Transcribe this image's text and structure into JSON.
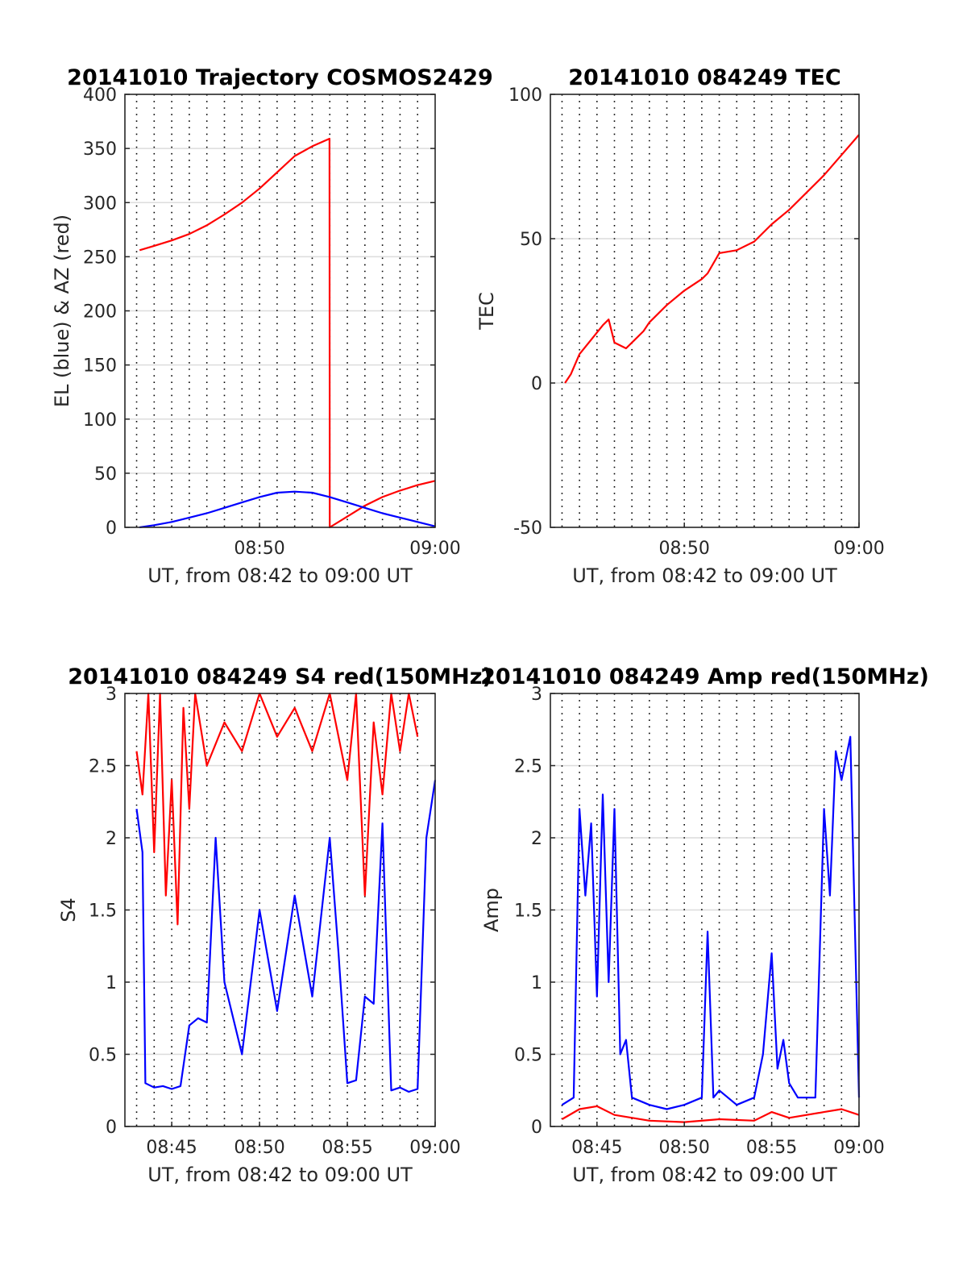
{
  "chart_data": [
    {
      "type": "line",
      "title": "20141010 Trajectory COSMOS2429",
      "xlabel": "UT, from 08:42 to 09:00 UT",
      "ylabel": "EL (blue) & AZ (red)",
      "xlim": [
        "08:42:20",
        "09:00"
      ],
      "ylim": [
        0,
        400
      ],
      "yticks": [
        0,
        50,
        100,
        150,
        200,
        250,
        300,
        350,
        400
      ],
      "xticks": [
        "08:50",
        "09:00"
      ],
      "grid": true,
      "series": [
        {
          "color": "#ff0000",
          "x": [
            "08:43:10",
            "08:44:00",
            "08:45:00",
            "08:46:00",
            "08:47:00",
            "08:48:00",
            "08:49:00",
            "08:50:00",
            "08:51:00",
            "08:52:00",
            "08:53:00",
            "08:53:59",
            "08:54:00",
            "08:55:00",
            "08:56:00",
            "08:57:00",
            "08:58:00",
            "08:59:00",
            "09:00:00"
          ],
          "values": [
            256,
            260,
            265,
            271,
            279,
            289,
            300,
            313,
            328,
            343,
            352,
            359,
            0,
            10,
            20,
            28,
            34,
            39,
            43
          ]
        },
        {
          "color": "#0000ff",
          "x": [
            "08:43:10",
            "08:44:00",
            "08:45:00",
            "08:46:00",
            "08:47:00",
            "08:48:00",
            "08:49:00",
            "08:50:00",
            "08:51:00",
            "08:52:00",
            "08:53:00",
            "08:54:00",
            "08:55:00",
            "08:56:00",
            "08:57:00",
            "08:58:00",
            "08:59:00",
            "09:00:00"
          ],
          "values": [
            0,
            2,
            5,
            9,
            13,
            18,
            23,
            28,
            32,
            33,
            32,
            28,
            23,
            18,
            13,
            9,
            5,
            1
          ]
        }
      ]
    },
    {
      "type": "line",
      "title": "20141010 084249 TEC",
      "xlabel": "UT, from 08:42 to 09:00 UT",
      "ylabel": "TEC",
      "xlim": [
        "08:42:20",
        "09:00"
      ],
      "ylim": [
        -50,
        100
      ],
      "yticks": [
        -50,
        0,
        50,
        100
      ],
      "xticks": [
        "08:50",
        "09:00"
      ],
      "grid": true,
      "series": [
        {
          "color": "#ff0000",
          "x": [
            "08:43:10",
            "08:43:30",
            "08:44:00",
            "08:44:40",
            "08:45:20",
            "08:45:40",
            "08:46:00",
            "08:46:40",
            "08:47:10",
            "08:47:40",
            "08:48:00",
            "08:49:00",
            "08:50:00",
            "08:51:00",
            "08:51:20",
            "08:52:00",
            "08:53:00",
            "08:54:00",
            "08:55:00",
            "08:56:00",
            "08:57:00",
            "08:58:00",
            "08:59:00",
            "09:00:00"
          ],
          "values": [
            0,
            3,
            10,
            15,
            20,
            22,
            14,
            12,
            15,
            18,
            21,
            27,
            32,
            36,
            38,
            45,
            46,
            49,
            55,
            60,
            66,
            72,
            79,
            86
          ]
        }
      ]
    },
    {
      "type": "line",
      "title": "20141010 084249 S4 red(150MHz)",
      "xlabel": "UT, from 08:42 to 09:00 UT",
      "ylabel": "S4",
      "xlim": [
        "08:42:20",
        "09:00"
      ],
      "ylim": [
        0,
        3
      ],
      "yticks": [
        0,
        0.5,
        1,
        1.5,
        2,
        2.5,
        3
      ],
      "xticks": [
        "08:45",
        "08:50",
        "08:55",
        "09:00"
      ],
      "grid": true,
      "series": [
        {
          "color": "#ff0000",
          "x": [
            "08:43:00",
            "08:43:20",
            "08:43:40",
            "08:44:00",
            "08:44:20",
            "08:44:40",
            "08:45:00",
            "08:45:20",
            "08:45:40",
            "08:46:00",
            "08:46:20",
            "08:47:00",
            "08:48:00",
            "08:49:00",
            "08:50:00",
            "08:51:00",
            "08:52:00",
            "08:53:00",
            "08:54:00",
            "08:55:00",
            "08:55:30",
            "08:56:00",
            "08:56:30",
            "08:57:00",
            "08:57:30",
            "08:58:00",
            "08:58:30",
            "08:59:00"
          ],
          "values": [
            2.6,
            2.3,
            3.0,
            1.9,
            3.0,
            1.6,
            2.4,
            1.4,
            2.9,
            2.2,
            3.0,
            2.5,
            2.8,
            2.6,
            3.0,
            2.7,
            2.9,
            2.6,
            3.0,
            2.4,
            3.0,
            1.6,
            2.8,
            2.3,
            3.0,
            2.6,
            3.0,
            2.7
          ]
        },
        {
          "color": "#0000ff",
          "x": [
            "08:43:00",
            "08:43:20",
            "08:43:30",
            "08:44:00",
            "08:44:30",
            "08:45:00",
            "08:45:30",
            "08:46:00",
            "08:46:30",
            "08:47:00",
            "08:47:30",
            "08:48:00",
            "08:49:00",
            "08:50:00",
            "08:51:00",
            "08:52:00",
            "08:53:00",
            "08:54:00",
            "08:54:30",
            "08:55:00",
            "08:55:30",
            "08:56:00",
            "08:56:30",
            "08:57:00",
            "08:57:30",
            "08:58:00",
            "08:58:30",
            "08:59:00",
            "08:59:30",
            "09:00:00"
          ],
          "values": [
            2.2,
            1.9,
            0.3,
            0.27,
            0.28,
            0.26,
            0.28,
            0.7,
            0.75,
            0.72,
            2.0,
            1.0,
            0.5,
            1.5,
            0.8,
            1.6,
            0.9,
            2.0,
            1.2,
            0.3,
            0.32,
            0.9,
            0.85,
            2.1,
            0.25,
            0.27,
            0.24,
            0.26,
            2.0,
            2.4
          ]
        }
      ]
    },
    {
      "type": "line",
      "title": "20141010 084249 Amp red(150MHz)",
      "xlabel": "UT, from 08:42 to 09:00 UT",
      "ylabel": "Amp",
      "xlim": [
        "08:42:20",
        "09:00"
      ],
      "ylim": [
        0,
        3
      ],
      "yticks": [
        0,
        0.5,
        1,
        1.5,
        2,
        2.5,
        3
      ],
      "xticks": [
        "08:45",
        "08:50",
        "08:55",
        "09:00"
      ],
      "grid": true,
      "series": [
        {
          "color": "#ff0000",
          "x": [
            "08:43:00",
            "08:44:00",
            "08:45:00",
            "08:46:00",
            "08:48:00",
            "08:50:00",
            "08:52:00",
            "08:54:00",
            "08:55:00",
            "08:56:00",
            "08:58:00",
            "08:59:00",
            "09:00:00"
          ],
          "values": [
            0.05,
            0.12,
            0.14,
            0.08,
            0.04,
            0.03,
            0.05,
            0.04,
            0.1,
            0.06,
            0.1,
            0.12,
            0.08
          ]
        },
        {
          "color": "#0000ff",
          "x": [
            "08:43:00",
            "08:43:40",
            "08:44:00",
            "08:44:20",
            "08:44:40",
            "08:45:00",
            "08:45:20",
            "08:45:40",
            "08:46:00",
            "08:46:20",
            "08:46:40",
            "08:47:00",
            "08:48:00",
            "08:49:00",
            "08:50:00",
            "08:51:00",
            "08:51:20",
            "08:51:40",
            "08:52:00",
            "08:53:00",
            "08:54:00",
            "08:54:30",
            "08:55:00",
            "08:55:20",
            "08:55:40",
            "08:56:00",
            "08:56:30",
            "08:57:00",
            "08:57:30",
            "08:58:00",
            "08:58:20",
            "08:58:40",
            "08:59:00",
            "08:59:30",
            "09:00:00"
          ],
          "values": [
            0.15,
            0.2,
            2.2,
            1.6,
            2.1,
            0.9,
            2.3,
            1.0,
            2.2,
            0.5,
            0.6,
            0.2,
            0.15,
            0.12,
            0.15,
            0.2,
            1.35,
            0.2,
            0.25,
            0.15,
            0.2,
            0.5,
            1.2,
            0.4,
            0.6,
            0.3,
            0.2,
            0.2,
            0.2,
            2.2,
            1.6,
            2.6,
            2.4,
            2.7,
            0.2
          ]
        }
      ]
    }
  ]
}
